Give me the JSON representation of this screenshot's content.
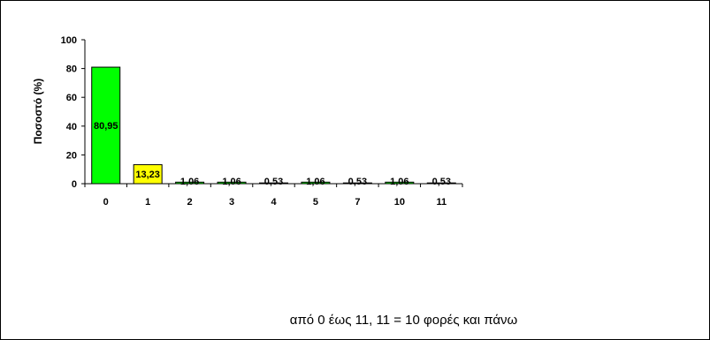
{
  "chart_data": {
    "type": "bar",
    "categories": [
      "0",
      "1",
      "2",
      "3",
      "4",
      "5",
      "7",
      "10",
      "11"
    ],
    "values": [
      80.95,
      13.23,
      1.06,
      1.06,
      0.53,
      1.06,
      0.53,
      1.06,
      0.53
    ],
    "value_labels": [
      "80,95",
      "13,23",
      "1,06",
      "1,06",
      "0,53",
      "1,06",
      "0,53",
      "1,06",
      "0,53"
    ],
    "bar_colors": [
      "#00ff00",
      "#ffff00",
      "#00ff00",
      "#00ff00",
      "#00ff00",
      "#00ff00",
      "#00ff00",
      "#00ff00",
      "#00ff00"
    ],
    "ylabel": "Ποσοστό (%)",
    "xlabel": "",
    "ylim": [
      0,
      100
    ],
    "yticks": [
      "0",
      "20",
      "40",
      "60",
      "80",
      "100"
    ],
    "grid": false
  },
  "caption": "από 0 έως 11,  11 = 10 φορές και πάνω"
}
